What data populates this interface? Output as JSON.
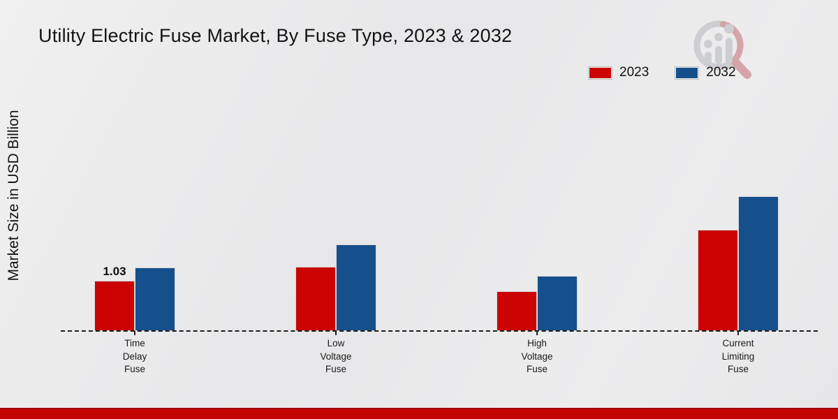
{
  "title": "Utility Electric Fuse Market, By Fuse Type, 2023 & 2032",
  "y_axis_label": "Market Size in USD Billion",
  "watermark_icon": "magnifier-growth-bars-logo",
  "chart_data": {
    "type": "bar",
    "title": "Utility Electric Fuse Market, By Fuse Type, 2023 & 2032",
    "ylabel": "Market Size in USD Billion",
    "categories": [
      "Time Delay Fuse",
      "Low Voltage Fuse",
      "High Voltage Fuse",
      "Current Limiting Fuse"
    ],
    "category_lines": [
      [
        "Time",
        "Delay",
        "Fuse"
      ],
      [
        "Low",
        "Voltage",
        "Fuse"
      ],
      [
        "High",
        "Voltage",
        "Fuse"
      ],
      [
        "Current",
        "Limiting",
        "Fuse"
      ]
    ],
    "series": [
      {
        "name": "2023",
        "color": "#cb0303",
        "values": [
          1.03,
          1.32,
          0.82,
          2.07
        ],
        "value_labels": [
          "1.03",
          "",
          "",
          ""
        ]
      },
      {
        "name": "2032",
        "color": "#15508c",
        "values": [
          1.3,
          1.77,
          1.13,
          2.75
        ],
        "value_labels": [
          "",
          "",
          "",
          ""
        ]
      }
    ],
    "ylim": [
      0,
      3.4
    ],
    "grid": false,
    "legend_position": "top-right",
    "baseline_style": "dashed",
    "y_axis_ticks_visible": false
  }
}
